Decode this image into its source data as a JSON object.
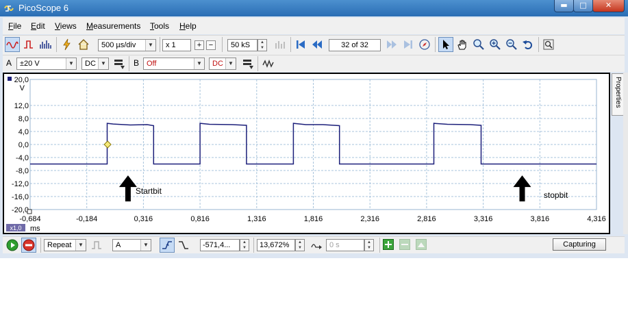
{
  "window": {
    "title": "PicoScope 6"
  },
  "titlebar_buttons": {
    "minimize": "▬",
    "maximize": "□",
    "close": "✕"
  },
  "menu": {
    "file": {
      "u": "F",
      "rest": "ile"
    },
    "edit": {
      "u": "E",
      "rest": "dit"
    },
    "views": {
      "u": "V",
      "rest": "iews"
    },
    "measurements": {
      "u": "M",
      "rest": "easurements"
    },
    "tools": {
      "u": "T",
      "rest": "ools"
    },
    "help": {
      "u": "H",
      "rest": "elp"
    }
  },
  "toolbar": {
    "timebase": "500 µs/div",
    "zoom": "x 1",
    "zoom_in": "+",
    "zoom_out": "−",
    "samples": "50 kS",
    "buffer_position": "32 of 32"
  },
  "channel_a": {
    "label": "A",
    "range": "±20 V",
    "coupling": "DC"
  },
  "channel_b": {
    "label": "B",
    "range": "Off",
    "coupling": "DC"
  },
  "status": {
    "trigger_mode": "Repeat",
    "trigger_source": "A",
    "trigger_level": "-571,4...",
    "pretrigger": "13,672%",
    "delay": "0 s",
    "capture_button": "Capturing"
  },
  "side_tab": {
    "properties": "Properties"
  },
  "chart_data": {
    "type": "line",
    "yunit": "V",
    "xunit": "ms",
    "x_scale_badge": "x1,0",
    "ylim": [
      -20,
      20
    ],
    "xlim": [
      -0.684,
      4.316
    ],
    "ytick_labels": [
      "20,0",
      "12,0",
      "8,0",
      "4,0",
      "0,0",
      "-4,0",
      "-8,0",
      "-12,0",
      "-16,0",
      "-20,0"
    ],
    "xtick_labels": [
      "-0,684",
      "-0,184",
      "0,316",
      "0,816",
      "1,316",
      "1,816",
      "2,316",
      "2,816",
      "3,316",
      "3,816",
      "4,316"
    ],
    "grid": true,
    "series_color": "#1c1f7a",
    "trigger_marker": {
      "x": 0.0,
      "y": 0.0
    },
    "x": [
      -0.684,
      -0.004,
      -0.004,
      0.05,
      0.2,
      0.35,
      0.406,
      0.406,
      0.816,
      0.816,
      0.9,
      1.1,
      1.226,
      1.226,
      1.64,
      1.64,
      1.75,
      1.9,
      2.047,
      2.047,
      2.88,
      2.88,
      3.0,
      3.2,
      3.297,
      3.297,
      4.316
    ],
    "y": [
      -6.0,
      -6.0,
      6.5,
      6.3,
      6.0,
      6.1,
      5.8,
      -6.0,
      -6.0,
      6.5,
      6.2,
      6.1,
      5.9,
      -6.0,
      -6.0,
      6.5,
      6.1,
      6.1,
      5.8,
      -6.0,
      -6.0,
      6.5,
      6.2,
      6.1,
      5.9,
      -6.0,
      -6.0
    ],
    "annotations": [
      {
        "text": "Startbit",
        "x": 0.18,
        "arrow_x": 0.18
      },
      {
        "text": "stopbit",
        "x": 3.85,
        "arrow_x": 3.66
      }
    ]
  }
}
